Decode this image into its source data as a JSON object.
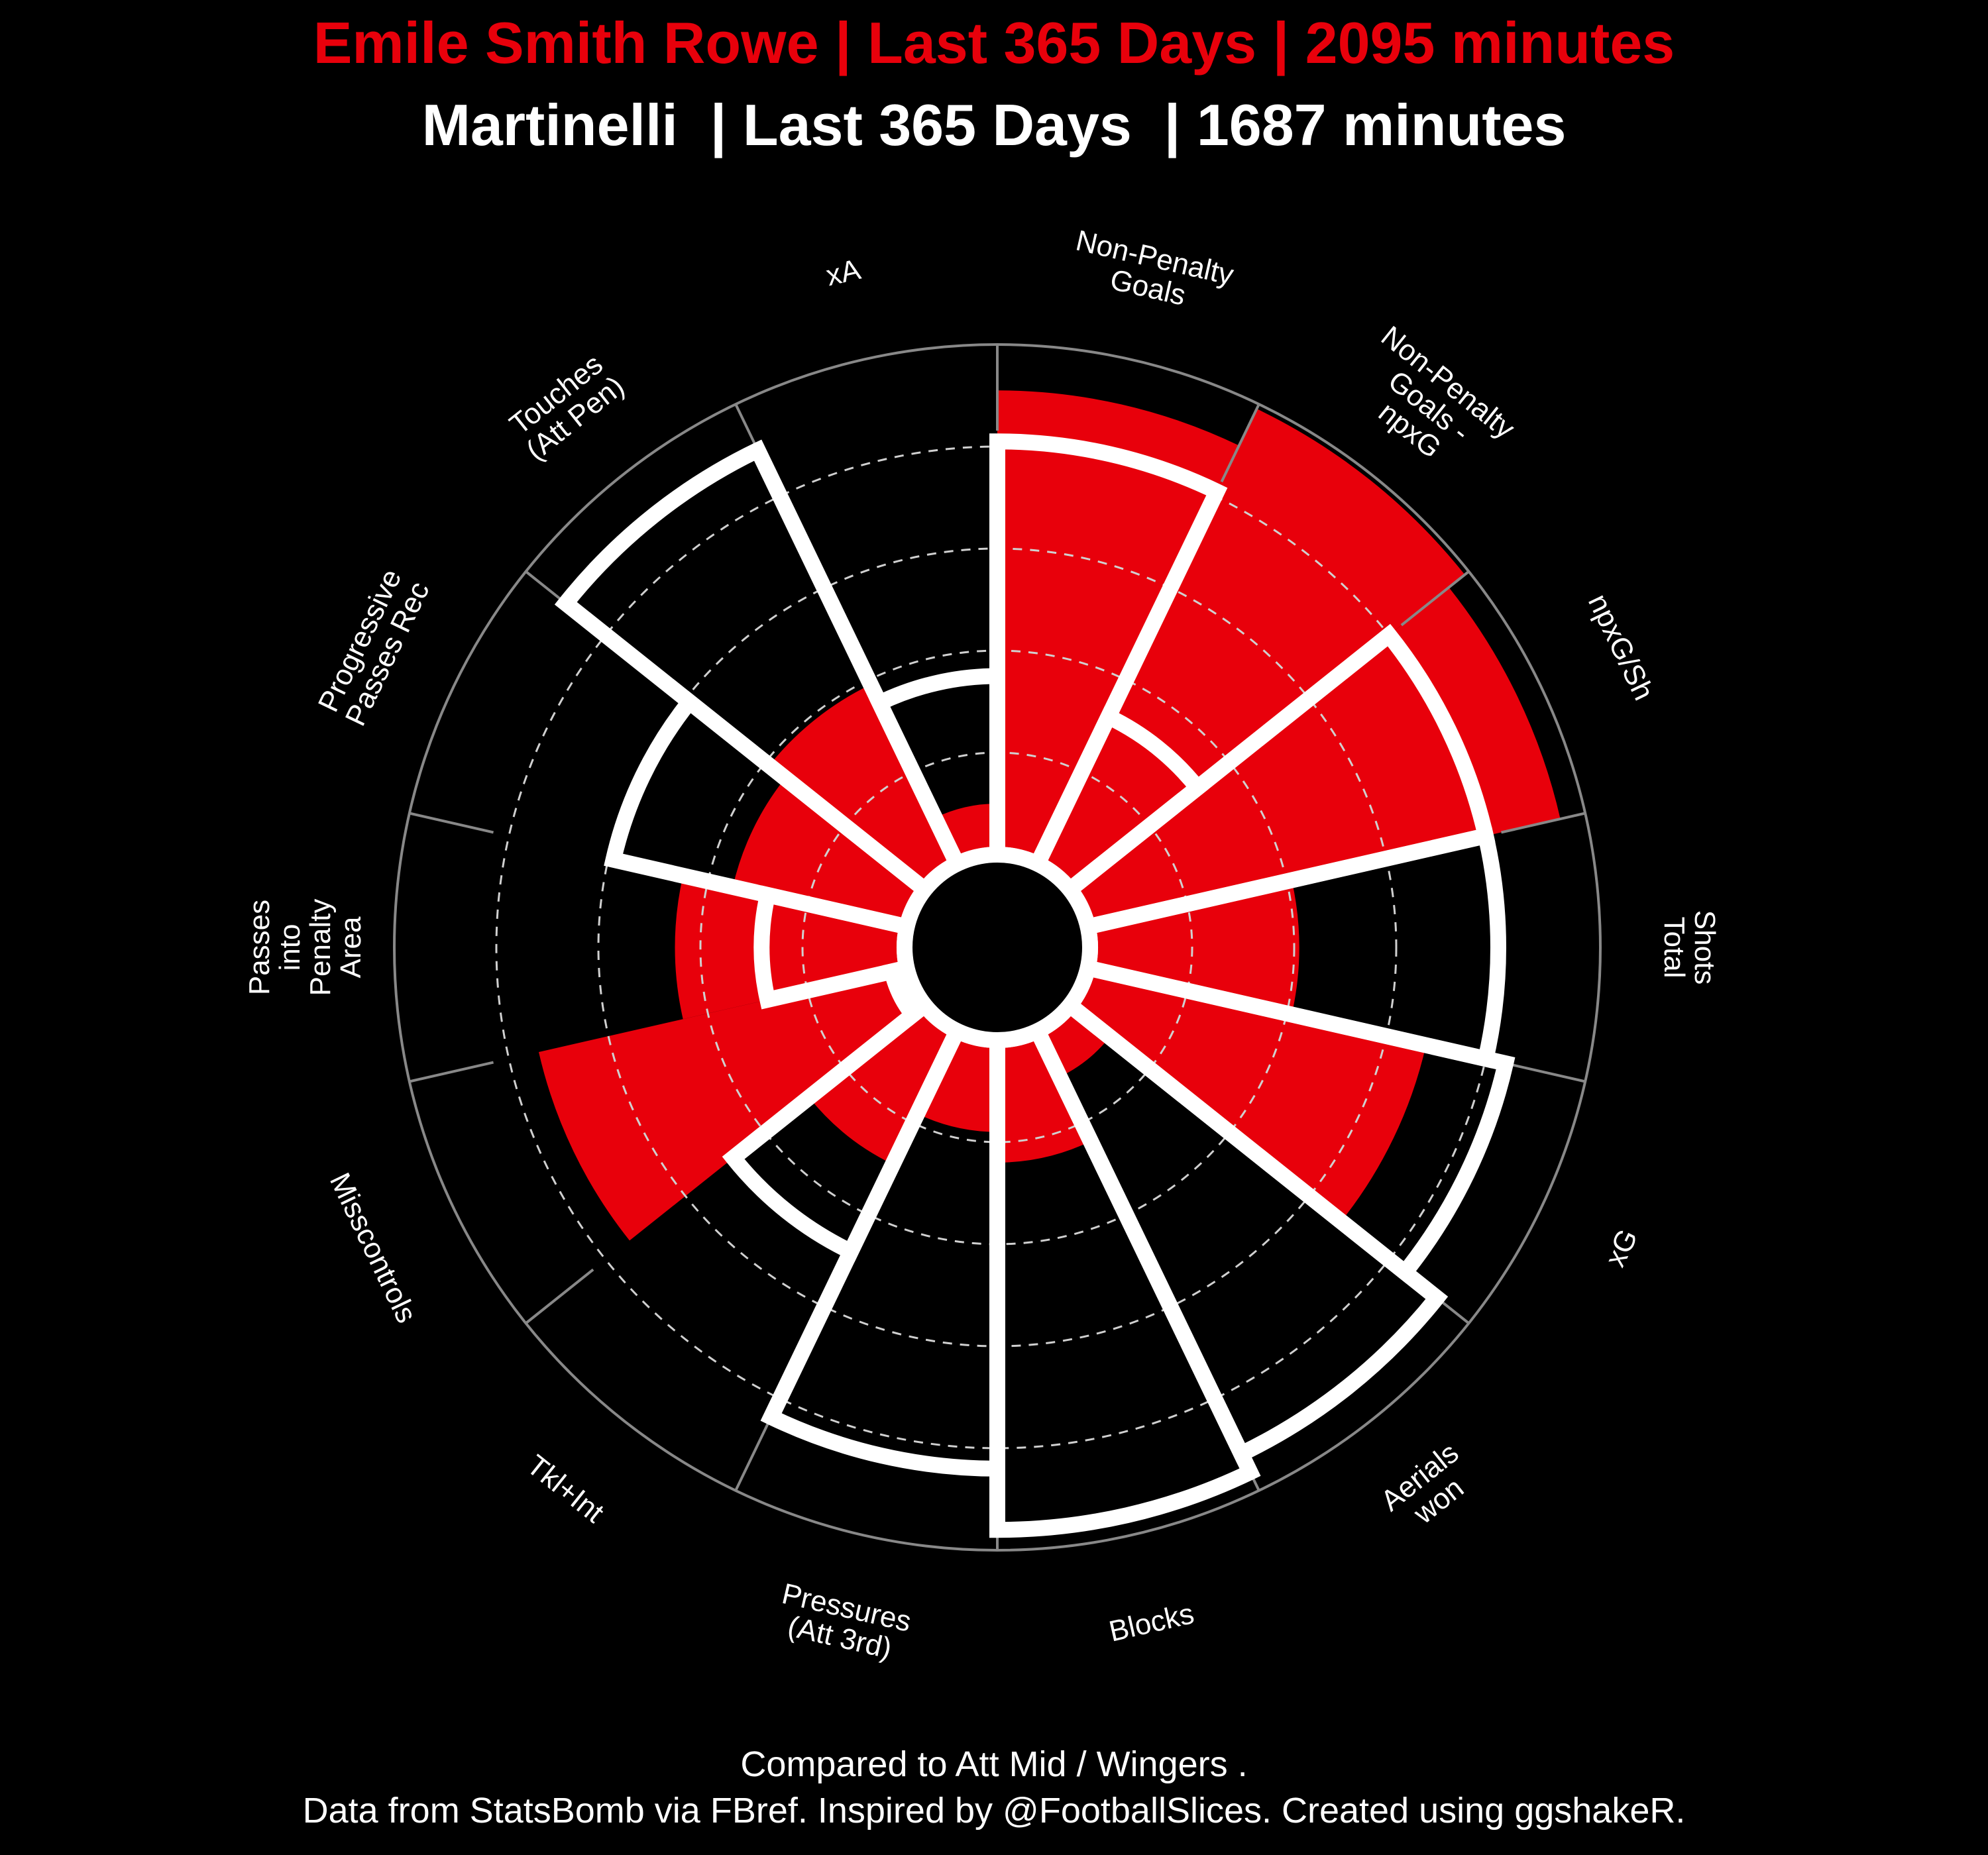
{
  "title_primary": "Emile Smith Rowe | Last 365 Days | 2095 minutes",
  "title_secondary": "Martinelli  | Last 365 Days  | 1687 minutes",
  "caption_line1": "Compared to Att Mid / Wingers .",
  "caption_line2": "Data from StatsBomb via FBref. Inspired by @FootballSlices. Created using ggshakeR.",
  "colors": {
    "primary": "#e8000b",
    "secondary": "#ffffff",
    "background": "#000000",
    "grid": "#888888"
  },
  "chart_data": {
    "type": "polar-bar",
    "ylim": [
      0,
      100
    ],
    "gridlines": [
      20,
      40,
      60,
      80
    ],
    "categories": [
      [
        "Non-Penalty",
        "Goals"
      ],
      [
        "Non-Penalty",
        "Goals -",
        "npxG"
      ],
      [
        "npxG/Sh"
      ],
      [
        "Shots",
        "Total"
      ],
      [
        "xG"
      ],
      [
        "Aerials",
        "won"
      ],
      [
        "Blocks"
      ],
      [
        "Pressures",
        "(Att 3rd)"
      ],
      [
        "Tkl+Int"
      ],
      [
        "Misscontrols"
      ],
      [
        "Passes",
        "into",
        "Penalty",
        "Area"
      ],
      [
        "Progressive",
        "Passes Rec"
      ],
      [
        "Touches",
        "(Att Pen)"
      ],
      [
        "xA"
      ]
    ],
    "series": [
      {
        "name": "Emile Smith Rowe",
        "values": [
          91,
          99,
          95,
          41,
          68,
          10,
          24,
          18,
          29,
          74,
          45,
          35,
          39,
          10
        ]
      },
      {
        "name": "Martinelli",
        "values": [
          81,
          32,
          80,
          80,
          84,
          92,
          96,
          84,
          48,
          3,
          28,
          59,
          90,
          35
        ]
      }
    ]
  }
}
